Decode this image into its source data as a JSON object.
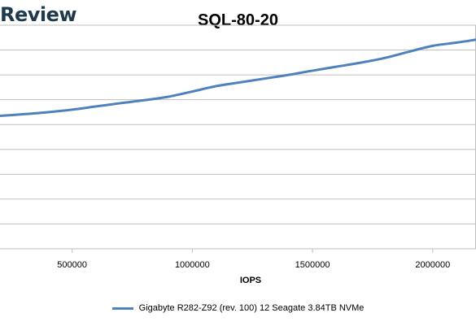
{
  "brand": "Review",
  "chart_data": {
    "type": "line",
    "title": "SQL-80-20",
    "xlabel": "IOPS",
    "ylabel": "",
    "xlim": [
      200000,
      2180000
    ],
    "ylim": [
      0,
      9
    ],
    "xticks": [
      500000,
      1000000,
      1500000,
      2000000
    ],
    "xtick_labels": [
      "500000",
      "1000000",
      "1500000",
      "2000000"
    ],
    "grid": true,
    "legend_position": "bottom",
    "colors": {
      "series": "#4f81bd",
      "grid": "#bfbfbf"
    },
    "series": [
      {
        "name": "Gigabyte R282-Z92 (rev. 100) 12 Seagate 3.84TB NVMe",
        "x": [
          200000,
          300000,
          400000,
          500000,
          600000,
          700000,
          800000,
          900000,
          1000000,
          1100000,
          1200000,
          1300000,
          1400000,
          1500000,
          1600000,
          1700000,
          1800000,
          1900000,
          2000000,
          2100000,
          2180000
        ],
        "y": [
          5.35,
          5.42,
          5.5,
          5.6,
          5.73,
          5.86,
          5.98,
          6.12,
          6.33,
          6.55,
          6.7,
          6.85,
          7.0,
          7.17,
          7.33,
          7.49,
          7.68,
          7.93,
          8.17,
          8.3,
          8.42
        ]
      }
    ]
  }
}
